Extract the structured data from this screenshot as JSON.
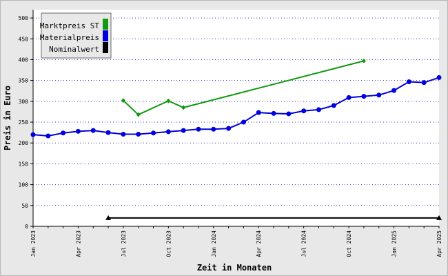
{
  "chart_data": {
    "type": "line",
    "title": "",
    "xlabel": "Zeit in Monaten",
    "ylabel": "Preis in Euro",
    "ylim": [
      0,
      520
    ],
    "yticks": [
      0,
      50,
      100,
      150,
      200,
      250,
      300,
      350,
      400,
      450,
      500
    ],
    "grid": true,
    "legend": "top-left",
    "x_tick_labels": [
      {
        "label": "Jan 2023",
        "date": "2023-01"
      },
      {
        "label": "Apr 2023",
        "date": "2023-04"
      },
      {
        "label": "Jul 2023",
        "date": "2023-07"
      },
      {
        "label": "Oct 2023",
        "date": "2023-10"
      },
      {
        "label": "Jan 2024",
        "date": "2024-01"
      },
      {
        "label": "Apr 2024",
        "date": "2024-04"
      },
      {
        "label": "Jul 2024",
        "date": "2024-07"
      },
      {
        "label": "Oct 2024",
        "date": "2024-10"
      },
      {
        "label": "Jan 2025",
        "date": "2025-01"
      },
      {
        "label": "Apr 2025",
        "date": "2025-04"
      }
    ],
    "series": [
      {
        "name": "Marktpreis ST",
        "color": "#119911",
        "marker": "diamond",
        "points": [
          {
            "x": "2023-07",
            "y": 302
          },
          {
            "x": "2023-08",
            "y": 268
          },
          {
            "x": "2023-10",
            "y": 301
          },
          {
            "x": "2023-11",
            "y": 285
          },
          {
            "x": "2024-11",
            "y": 397
          }
        ]
      },
      {
        "name": "Materialpreis",
        "color": "#0000dd",
        "marker": "circle",
        "points": [
          {
            "x": "2023-01",
            "y": 220
          },
          {
            "x": "2023-02",
            "y": 217
          },
          {
            "x": "2023-03",
            "y": 224
          },
          {
            "x": "2023-04",
            "y": 228
          },
          {
            "x": "2023-05",
            "y": 230
          },
          {
            "x": "2023-06",
            "y": 225
          },
          {
            "x": "2023-07",
            "y": 221
          },
          {
            "x": "2023-08",
            "y": 221
          },
          {
            "x": "2023-09",
            "y": 224
          },
          {
            "x": "2023-10",
            "y": 227
          },
          {
            "x": "2023-11",
            "y": 230
          },
          {
            "x": "2023-12",
            "y": 233
          },
          {
            "x": "2024-01",
            "y": 233
          },
          {
            "x": "2024-02",
            "y": 235
          },
          {
            "x": "2024-03",
            "y": 250
          },
          {
            "x": "2024-04",
            "y": 273
          },
          {
            "x": "2024-05",
            "y": 271
          },
          {
            "x": "2024-06",
            "y": 270
          },
          {
            "x": "2024-07",
            "y": 277
          },
          {
            "x": "2024-08",
            "y": 280
          },
          {
            "x": "2024-09",
            "y": 290
          },
          {
            "x": "2024-10",
            "y": 309
          },
          {
            "x": "2024-11",
            "y": 312
          },
          {
            "x": "2024-12",
            "y": 315
          },
          {
            "x": "2025-01",
            "y": 326
          },
          {
            "x": "2025-02",
            "y": 347
          },
          {
            "x": "2025-03",
            "y": 345
          },
          {
            "x": "2025-04",
            "y": 357
          }
        ]
      },
      {
        "name": "Nominalwert",
        "color": "#000000",
        "marker": "triangle",
        "points": [
          {
            "x": "2023-06",
            "y": 20
          },
          {
            "x": "2025-04",
            "y": 20
          }
        ]
      }
    ]
  }
}
